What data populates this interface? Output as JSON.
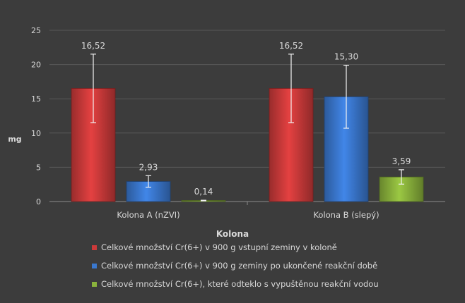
{
  "chart_data": {
    "type": "bar",
    "title": "",
    "xlabel": "Kolona",
    "ylabel": "mg",
    "ylim": [
      0,
      25
    ],
    "yticks": [
      "0",
      "5",
      "10",
      "15",
      "20",
      "25"
    ],
    "grid": true,
    "categories": [
      "Kolona A (nZVI)",
      "Kolona B (slepý)"
    ],
    "series": [
      {
        "name": "Celkové množství Cr(6+) v 900 g vstupní zeminy v koloně",
        "color": "#cc3a3a",
        "values": [
          16.52,
          16.52
        ],
        "labels": [
          "16,52",
          "16,52"
        ],
        "errors": [
          5.0,
          5.0
        ]
      },
      {
        "name": "Celkové množství Cr(6+) v 900 g zeminy po ukončené reakční době",
        "color": "#3a78cf",
        "values": [
          2.93,
          15.3
        ],
        "labels": [
          "2,93",
          "15,30"
        ],
        "errors": [
          0.85,
          4.6
        ]
      },
      {
        "name": "Celkové množství Cr(6+), které odteklo s vypuštěnou reakční vodou",
        "color": "#8ab33c",
        "values": [
          0.14,
          3.59
        ],
        "labels": [
          "0,14",
          "3,59"
        ],
        "errors": [
          0.05,
          1.05
        ]
      }
    ],
    "legend_position": "bottom"
  }
}
